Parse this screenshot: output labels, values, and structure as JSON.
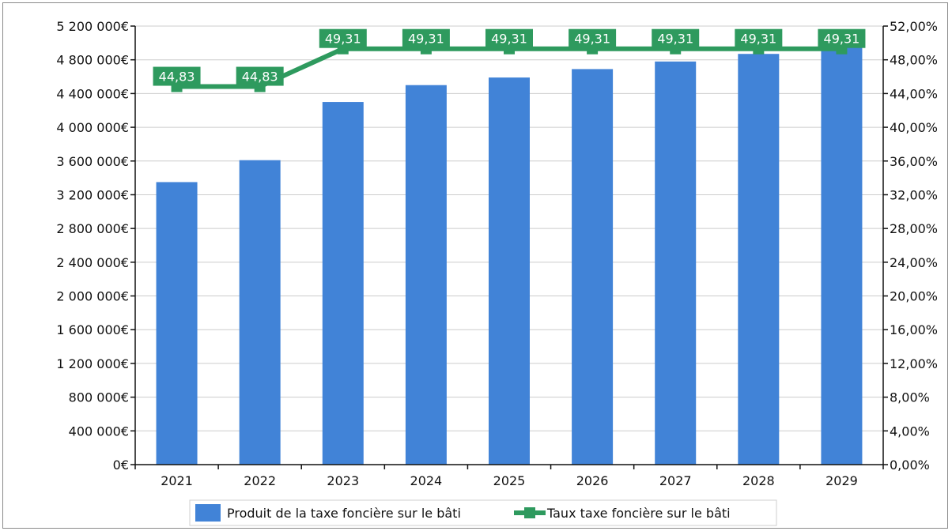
{
  "colors": {
    "bars": "#4183d7",
    "line": "#2e9a5e",
    "grid": "#cccccc",
    "axis": "#111111"
  },
  "chart_data": {
    "type": "bar",
    "categories": [
      "2021",
      "2022",
      "2023",
      "2024",
      "2025",
      "2026",
      "2027",
      "2028",
      "2029"
    ],
    "series": [
      {
        "name": "Produit de la taxe foncière sur le bâti",
        "type": "bar",
        "axis": "left",
        "values": [
          3350000,
          3610000,
          4300000,
          4500000,
          4590000,
          4690000,
          4780000,
          4870000,
          4960000
        ]
      },
      {
        "name": "Taux taxe foncière sur le bâti",
        "type": "line",
        "axis": "right",
        "values": [
          44.83,
          44.83,
          49.31,
          49.31,
          49.31,
          49.31,
          49.31,
          49.31,
          49.31
        ],
        "data_labels": [
          "44,83",
          "44,83",
          "49,31",
          "49,31",
          "49,31",
          "49,31",
          "49,31",
          "49,31",
          "49,31"
        ]
      }
    ],
    "y_left": {
      "ylim": [
        0,
        5200000
      ],
      "ticks": [
        "0€",
        "400 000€",
        "800 000€",
        "1 200 000€",
        "1 600 000€",
        "2 000 000€",
        "2 400 000€",
        "2 800 000€",
        "3 200 000€",
        "3 600 000€",
        "4 000 000€",
        "4 400 000€",
        "4 800 000€",
        "5 200 000€"
      ]
    },
    "y_right": {
      "ylim": [
        0,
        52
      ],
      "ticks": [
        "0,00%",
        "4,00%",
        "8,00%",
        "12,00%",
        "16,00%",
        "20,00%",
        "24,00%",
        "28,00%",
        "32,00%",
        "36,00%",
        "40,00%",
        "44,00%",
        "48,00%",
        "52,00%"
      ]
    },
    "grid": true,
    "legend": "bottom"
  }
}
